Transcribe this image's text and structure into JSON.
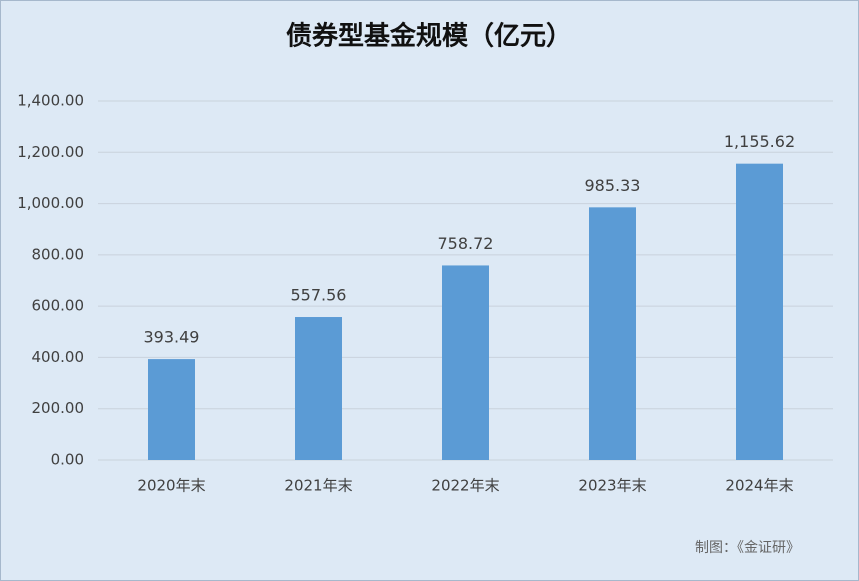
{
  "chart_data": {
    "type": "bar",
    "title": "债券型基金规模（亿元）",
    "categories": [
      "2020年末",
      "2021年末",
      "2022年末",
      "2023年末",
      "2024年末"
    ],
    "values": [
      393.49,
      557.56,
      758.72,
      985.33,
      1155.62
    ],
    "value_labels": [
      "393.49",
      "557.56",
      "758.72",
      "985.33",
      "1,155.62"
    ],
    "color": "#5b9bd5",
    "ylim": [
      0,
      1400
    ],
    "yticks": [
      {
        "value": 0,
        "label": "0.00"
      },
      {
        "value": 200,
        "label": "200.00"
      },
      {
        "value": 400,
        "label": "400.00"
      },
      {
        "value": 600,
        "label": "600.00"
      },
      {
        "value": 800,
        "label": "800.00"
      },
      {
        "value": 1000,
        "label": "1,000.00"
      },
      {
        "value": 1200,
        "label": "1,200.00"
      },
      {
        "value": 1400,
        "label": "1,400.00"
      }
    ],
    "grid": true,
    "annotation": "制图：《金证研》"
  }
}
